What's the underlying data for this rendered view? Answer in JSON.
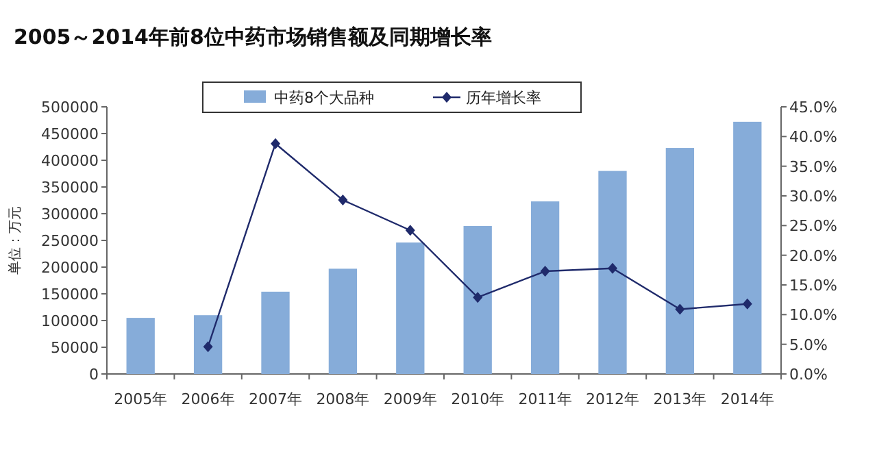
{
  "chart_data": {
    "type": "bar",
    "title": "2005～2014年前8位中药市场销售额及同期增长率",
    "ylabel": "单位：万元",
    "categories": [
      "2005年",
      "2006年",
      "2007年",
      "2008年",
      "2009年",
      "2010年",
      "2011年",
      "2012年",
      "2013年",
      "2014年"
    ],
    "series": [
      {
        "name": "中药8个大品种",
        "color": "#86acd9",
        "values": [
          105000,
          110000,
          154000,
          197000,
          246000,
          277000,
          323000,
          380000,
          423000,
          472000
        ]
      },
      {
        "name": "历年增长率",
        "type": "line",
        "axis": "y2",
        "color": "#1f2a6b",
        "marker": "diamond",
        "values": [
          null,
          4.6,
          38.8,
          29.3,
          24.2,
          12.9,
          17.3,
          17.8,
          10.9,
          11.8
        ]
      }
    ],
    "ylim": [
      0,
      500000
    ],
    "yticks": [
      0,
      50000,
      100000,
      150000,
      200000,
      250000,
      300000,
      350000,
      400000,
      450000,
      500000
    ],
    "y2lim": [
      0,
      45
    ],
    "y2ticks": [
      {
        "value": 0,
        "label": "0.0%"
      },
      {
        "value": 5,
        "label": "5.0%"
      },
      {
        "value": 10,
        "label": "10.0%"
      },
      {
        "value": 15,
        "label": "15.0%"
      },
      {
        "value": 20,
        "label": "20.0%"
      },
      {
        "value": 25,
        "label": "25.0%"
      },
      {
        "value": 30,
        "label": "30.0%"
      },
      {
        "value": 35,
        "label": "35.0%"
      },
      {
        "value": 40,
        "label": "40.0%"
      },
      {
        "value": 45,
        "label": "45.0%"
      }
    ],
    "legend": "top",
    "grid": false
  }
}
